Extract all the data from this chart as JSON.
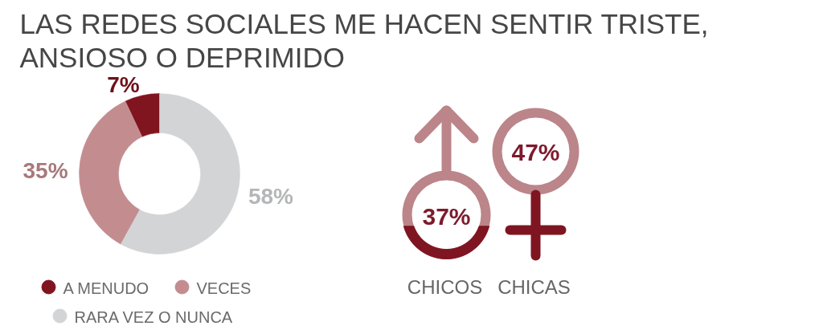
{
  "chart_data": [
    {
      "type": "donut",
      "title": "LAS REDES SOCIALES ME HACEN SENTIR TRISTE, ANSIOSO O DEPRIMIDO",
      "categories": [
        "A MENUDO",
        "VECES",
        "RARA VEZ O NUNCA"
      ],
      "values": [
        7,
        35,
        58
      ],
      "colors": [
        "#80141f",
        "#c38d90",
        "#d3d4d6"
      ],
      "value_labels": [
        "7%",
        "35%",
        "58%"
      ],
      "legend": "bottom"
    },
    {
      "type": "other",
      "categories": [
        "CHICOS",
        "CHICAS"
      ],
      "values": [
        37,
        47
      ],
      "value_labels": [
        "37%",
        "47%"
      ]
    }
  ]
}
